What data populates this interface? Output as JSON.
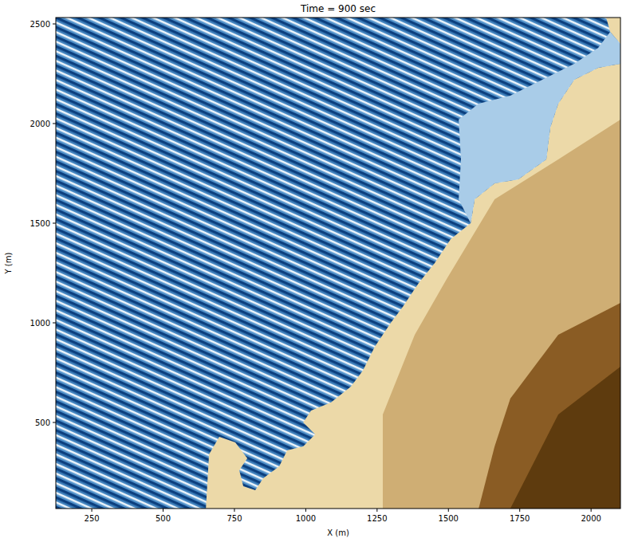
{
  "chart_data": {
    "type": "image",
    "title": "Time = 900 sec",
    "x_label": "X (m)",
    "y_label": "Y (m)",
    "xlim": [
      124,
      2103
    ],
    "ylim": [
      68,
      2532
    ],
    "xticks": [
      250,
      500,
      750,
      1000,
      1250,
      1500,
      1750,
      2000
    ],
    "yticks": [
      500,
      1000,
      1500,
      2000,
      2500
    ],
    "land": [
      {
        "color": "#ecd9a8",
        "x": [
          124,
          2103,
          2103,
          124
        ],
        "y": [
          68,
          68,
          2532,
          2532
        ]
      },
      {
        "color": "#cfae74",
        "x": [
          1494,
          1662,
          1885,
          2103,
          2103,
          1270,
          1270,
          1382
        ],
        "y": [
          1220,
          1620,
          1820,
          2020,
          68,
          68,
          540,
          940
        ]
      },
      {
        "color": "#8a5c24",
        "x": [
          1717,
          1885,
          2103,
          2103,
          1606,
          1662
        ],
        "y": [
          620,
          940,
          1100,
          68,
          68,
          380
        ]
      },
      {
        "color": "#5e3b0e",
        "x": [
          1885,
          2103,
          2103,
          1717
        ],
        "y": [
          540,
          780,
          68,
          68
        ]
      }
    ],
    "water": {
      "color": "#4f8fc8",
      "x": [
        124,
        2053,
        2067,
        2103,
        2103,
        2025,
        1941,
        1885,
        1857,
        1843,
        1745,
        1662,
        1592,
        1578,
        1508,
        1452,
        1396,
        1340,
        1298,
        1242,
        1200,
        1158,
        1088,
        1019,
        991,
        1033,
        991,
        935,
        907,
        851,
        823,
        781,
        767,
        795,
        753,
        697,
        661,
        650,
        124
      ],
      "y": [
        2532,
        2532,
        2460,
        2400,
        2300,
        2280,
        2220,
        2100,
        1980,
        1820,
        1720,
        1700,
        1620,
        1500,
        1420,
        1300,
        1200,
        1080,
        1000,
        880,
        760,
        680,
        600,
        560,
        500,
        440,
        380,
        360,
        280,
        220,
        160,
        180,
        260,
        320,
        400,
        428,
        340,
        68,
        68
      ]
    },
    "calm_water": {
      "color": "#a9cce8",
      "x": [
        1536,
        1606,
        1717,
        1829,
        1941,
        2025,
        2067,
        2103,
        2103,
        2025,
        1941,
        1885,
        1857,
        1843,
        1745,
        1662,
        1592,
        1578,
        1536,
        1544
      ],
      "y": [
        2020,
        2100,
        2140,
        2220,
        2300,
        2380,
        2460,
        2400,
        2300,
        2280,
        2220,
        2100,
        1980,
        1820,
        1720,
        1700,
        1620,
        1500,
        1620,
        1820
      ]
    }
  }
}
